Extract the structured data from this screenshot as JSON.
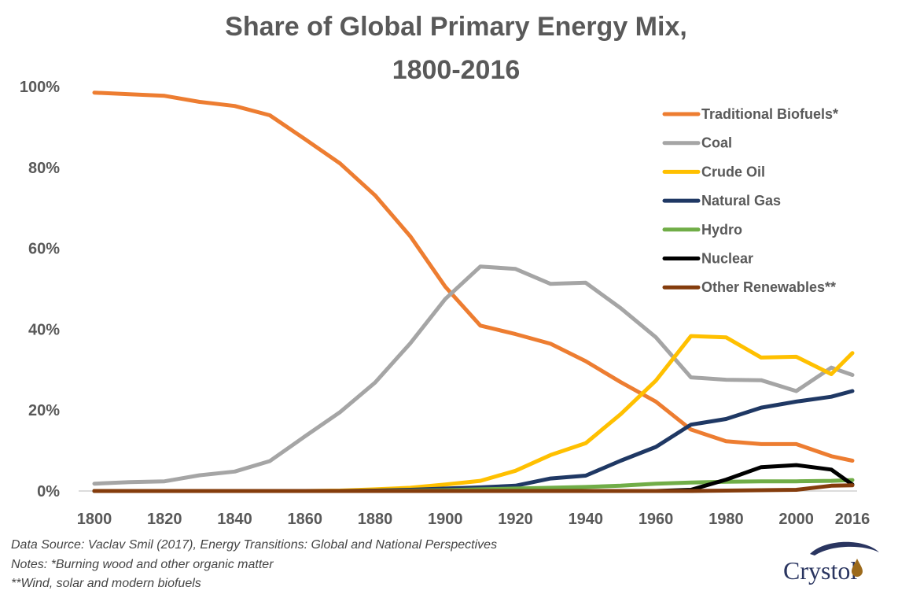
{
  "chart_data": {
    "type": "line",
    "title_lines": [
      "Share of Global Primary Energy Mix,",
      "1800-2016"
    ],
    "xlabel": "",
    "ylabel": "",
    "x": [
      1800,
      1810,
      1820,
      1830,
      1840,
      1850,
      1860,
      1870,
      1880,
      1890,
      1900,
      1910,
      1920,
      1930,
      1940,
      1950,
      1960,
      1970,
      1980,
      1990,
      2000,
      2010,
      2016
    ],
    "xlim": [
      1800,
      2016
    ],
    "ylim": [
      0,
      100
    ],
    "x_ticks": [
      1800,
      1820,
      1840,
      1860,
      1880,
      1900,
      1920,
      1940,
      1960,
      1980,
      2000,
      2016
    ],
    "y_ticks": [
      0,
      20,
      40,
      60,
      80,
      100
    ],
    "y_tick_labels": [
      "0%",
      "20%",
      "40%",
      "60%",
      "80%",
      "100%"
    ],
    "grid": false,
    "legend_position": "top-right",
    "series": [
      {
        "name": "Traditional Biofuels*",
        "color": "#ED7D31",
        "values": [
          98.5,
          98.1,
          97.7,
          96.2,
          95.2,
          92.9,
          87.0,
          81.0,
          73.1,
          63.0,
          50.5,
          40.9,
          38.8,
          36.4,
          32.1,
          26.9,
          22.1,
          15.2,
          12.3,
          11.6,
          11.6,
          8.6,
          7.5
        ]
      },
      {
        "name": "Coal",
        "color": "#A5A5A5",
        "values": [
          1.8,
          2.2,
          2.4,
          3.9,
          4.8,
          7.4,
          13.5,
          19.5,
          26.8,
          36.5,
          47.5,
          55.5,
          54.9,
          51.2,
          51.5,
          45.2,
          38.0,
          28.1,
          27.5,
          27.4,
          24.7,
          30.5,
          28.7
        ]
      },
      {
        "name": "Crude Oil",
        "color": "#FFC000",
        "values": [
          0,
          0,
          0,
          0,
          0,
          0,
          0,
          0.1,
          0.4,
          0.8,
          1.6,
          2.5,
          5.0,
          8.9,
          11.8,
          19.0,
          27.3,
          38.3,
          38.0,
          33.0,
          33.2,
          28.9,
          34.1
        ]
      },
      {
        "name": "Natural Gas",
        "color": "#1F3864",
        "values": [
          0,
          0,
          0,
          0,
          0,
          0,
          0,
          0,
          0.1,
          0.3,
          0.6,
          0.9,
          1.3,
          3.1,
          3.8,
          7.5,
          10.9,
          16.4,
          17.8,
          20.6,
          22.1,
          23.3,
          24.7
        ]
      },
      {
        "name": "Hydro",
        "color": "#70AD47",
        "values": [
          0,
          0,
          0,
          0,
          0,
          0,
          0,
          0,
          0,
          0.1,
          0.2,
          0.4,
          0.6,
          0.8,
          1.0,
          1.3,
          1.8,
          2.1,
          2.3,
          2.4,
          2.4,
          2.5,
          2.7
        ]
      },
      {
        "name": "Nuclear",
        "color": "#000000",
        "values": [
          0,
          0,
          0,
          0,
          0,
          0,
          0,
          0,
          0,
          0,
          0,
          0,
          0,
          0,
          0,
          0,
          0,
          0.3,
          2.8,
          5.9,
          6.4,
          5.3,
          1.6
        ]
      },
      {
        "name": "Other Renewables**",
        "color": "#843C0C",
        "values": [
          0,
          0,
          0,
          0,
          0,
          0,
          0,
          0,
          0,
          0,
          0,
          0,
          0,
          0,
          0,
          0,
          0,
          0,
          0.1,
          0.2,
          0.3,
          1.3,
          1.4
        ]
      }
    ]
  },
  "footnotes": {
    "source": "Data Source: Vaclav Smil (2017), Energy Transitions: Global and National Perspectives",
    "note1": "Notes: *Burning wood and other organic matter",
    "note2": "**Wind, solar and modern biofuels"
  },
  "logo": {
    "text": "Crystol",
    "icon": "oil-drop-swoosh-logo",
    "colors": {
      "text": "#2a3560",
      "drop": "#9c6a1b"
    }
  }
}
